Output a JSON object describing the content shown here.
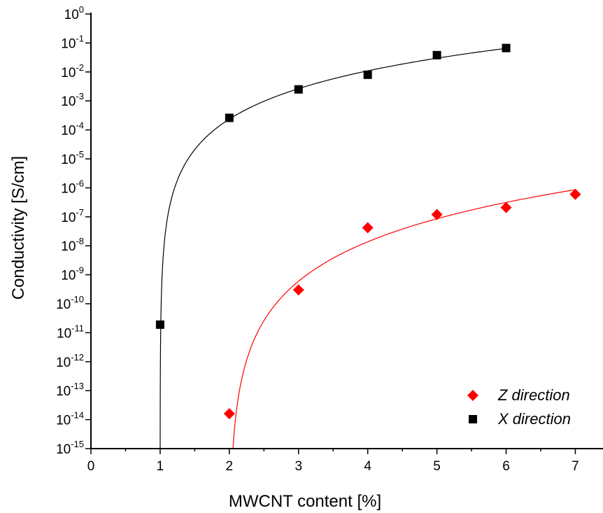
{
  "chart_data": {
    "type": "scatter",
    "xlabel": "MWCNT content [%]",
    "ylabel": "Conductivity [S/cm]",
    "xlim": [
      0,
      7.4
    ],
    "ylim_log10": [
      -15,
      0
    ],
    "yscale": "log",
    "x_ticks": [
      0,
      1,
      2,
      3,
      4,
      5,
      6,
      7
    ],
    "x_tick_labels": [
      "0",
      "1",
      "2",
      "3",
      "4",
      "5",
      "6",
      "7"
    ],
    "y_tick_base": "10",
    "y_tick_exponents": [
      "0",
      "-1",
      "-2",
      "-3",
      "-4",
      "-5",
      "-6",
      "-7",
      "-8",
      "-9",
      "-10",
      "-11",
      "-12",
      "-13",
      "-14",
      "-15"
    ],
    "legend_position": "bottom-right",
    "grid": false,
    "series": [
      {
        "name": "Z direction",
        "marker": "diamond",
        "color": "#ff0000",
        "x": [
          2,
          3,
          4,
          5,
          6,
          7
        ],
        "y": [
          1.6e-14,
          3e-10,
          4.2e-08,
          1.2e-07,
          2.1e-07,
          6e-07
        ]
      },
      {
        "name": "X direction",
        "marker": "square",
        "color": "#000000",
        "x": [
          1,
          2,
          3,
          4,
          5,
          6
        ],
        "y": [
          1.9e-11,
          0.00026,
          0.0025,
          0.008,
          0.038,
          0.067
        ]
      }
    ],
    "fits": [
      {
        "series": "X direction",
        "model": "power_law_percolation",
        "threshold": 1.0,
        "color": "#000000"
      },
      {
        "series": "Z direction",
        "model": "power_law_percolation",
        "threshold": 2.0,
        "color": "#ff0000"
      }
    ]
  }
}
